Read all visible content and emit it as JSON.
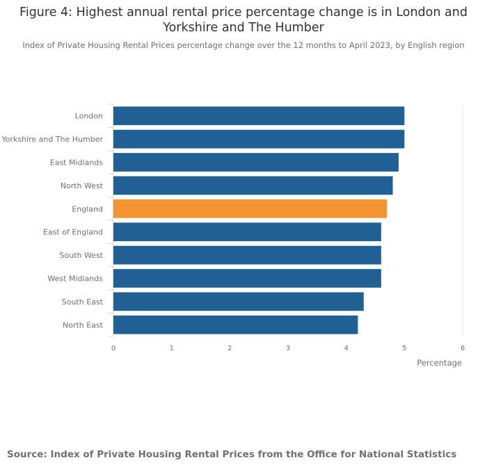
{
  "title": "Figure 4: Highest annual rental price percentage change is in London and Yorkshire and The Humber",
  "subtitle": "Index of Private Housing Rental Prices percentage change over the 12 months to April 2023, by English region",
  "source": "Source: Index of Private Housing Rental Prices from the Office for National Statistics",
  "chart_data": {
    "type": "bar",
    "orientation": "horizontal",
    "title": "Figure 4: Highest annual rental price percentage change is in London and Yorkshire and The Humber",
    "subtitle": "Index of Private Housing Rental Prices percentage change over the 12 months to April 2023, by English region",
    "xlabel": "Percentage",
    "ylabel": "",
    "xlim": [
      0,
      6
    ],
    "x_ticks": [
      "0",
      "1",
      "2",
      "3",
      "4",
      "5",
      "6"
    ],
    "grid": false,
    "categories": [
      "London",
      "Yorkshire and The Humber",
      "East Midlands",
      "North West",
      "England",
      "East of England",
      "South West",
      "West Midlands",
      "South East",
      "North East"
    ],
    "values": [
      5.0,
      5.0,
      4.9,
      4.8,
      4.7,
      4.6,
      4.6,
      4.6,
      4.3,
      4.2
    ],
    "highlight_category": "England",
    "colors": {
      "default": "#206095",
      "highlight": "#f39431"
    }
  }
}
